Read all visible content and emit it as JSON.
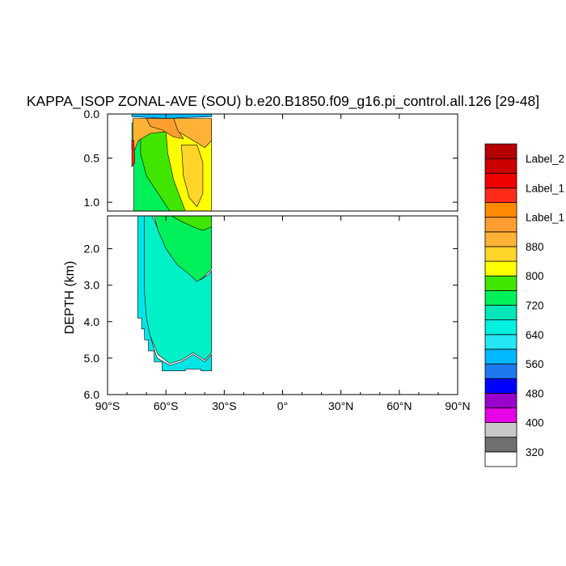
{
  "chart_data": {
    "type": "contour",
    "title": "KAPPA_ISOP ZONAL-AVE (SOU) b.e20.B1850.f09_g16.pi_control.all.126 [29-48]",
    "ylabel": "DEPTH (km)",
    "xlabel": "",
    "x_ticks": [
      "90°S",
      "60°S",
      "30°S",
      "0°",
      "30°N",
      "60°N",
      "90°N"
    ],
    "xlim": [
      -90,
      90
    ],
    "upper_panel": {
      "ylim": [
        0.0,
        1.1
      ],
      "y_ticks": [
        "0.0",
        "0.5",
        "1.0"
      ],
      "y_tick_values": [
        0.0,
        0.5,
        1.0
      ]
    },
    "lower_panel": {
      "ylim": [
        1.1,
        6.0
      ],
      "y_ticks": [
        "2.0",
        "3.0",
        "4.0",
        "5.0",
        "6.0"
      ],
      "y_tick_values": [
        2.0,
        3.0,
        4.0,
        5.0,
        6.0
      ]
    },
    "colorbar": {
      "labels": [
        "320",
        "400",
        "480",
        "560",
        "640",
        "720",
        "800",
        "880",
        "Label_1",
        "Label_1",
        "Label_2"
      ],
      "colors": [
        "#ffffff",
        "#707070",
        "#c8c8c8",
        "#e600e6",
        "#9a00cc",
        "#0000ff",
        "#1e78f0",
        "#00b8ff",
        "#25e6f5",
        "#00f0e0",
        "#00e6b8",
        "#00f05a",
        "#40e600",
        "#ffff00",
        "#ffd52a",
        "#ffb236",
        "#ff9e30",
        "#ff8a00",
        "#ff2a1a",
        "#f00000",
        "#cc0000",
        "#b40000"
      ]
    },
    "field_contours": [
      {
        "level": 660,
        "color": "#00e6e6",
        "points": [
          [
            -76.5,
            1.1
          ],
          [
            -70.5,
            1.1
          ],
          [
            -70.5,
            3.2
          ],
          [
            -69.5,
            4.0
          ],
          [
            -67.5,
            4.5
          ],
          [
            -64.5,
            5.0
          ],
          [
            -58.0,
            5.2
          ],
          [
            -52.0,
            5.1
          ],
          [
            -46.0,
            4.9
          ],
          [
            -40.0,
            5.1
          ],
          [
            -36.5,
            4.9
          ],
          [
            -36.5,
            5.35
          ],
          [
            -42.0,
            5.35
          ],
          [
            -42.0,
            5.3
          ],
          [
            -50.0,
            5.3
          ],
          [
            -50.0,
            5.35
          ],
          [
            -62.0,
            5.35
          ],
          [
            -62.0,
            5.1
          ],
          [
            -66.0,
            5.1
          ],
          [
            -66.0,
            4.8
          ],
          [
            -69.0,
            4.8
          ],
          [
            -69.0,
            4.5
          ],
          [
            -71.0,
            4.5
          ],
          [
            -71.0,
            4.2
          ],
          [
            -72.5,
            4.2
          ],
          [
            -72.5,
            3.9
          ],
          [
            -74.5,
            3.9
          ],
          [
            -74.5,
            1.1
          ]
        ]
      },
      {
        "level": 720,
        "color": "#00f0c8",
        "points": [
          [
            -75.5,
            1.1
          ],
          [
            -67.0,
            1.1
          ],
          [
            -63.0,
            1.6
          ],
          [
            -58.0,
            2.1
          ],
          [
            -52.0,
            2.5
          ],
          [
            -46.0,
            2.7
          ],
          [
            -42.0,
            2.85
          ],
          [
            -38.0,
            2.7
          ],
          [
            -36.5,
            2.6
          ],
          [
            -36.5,
            4.85
          ],
          [
            -40.0,
            5.05
          ],
          [
            -46.0,
            4.85
          ],
          [
            -52.0,
            5.05
          ],
          [
            -58.0,
            5.15
          ],
          [
            -64.0,
            4.9
          ],
          [
            -68.0,
            4.4
          ],
          [
            -70.0,
            3.9
          ],
          [
            -71.0,
            3.2
          ],
          [
            -71.0,
            1.1
          ]
        ]
      },
      {
        "level": 760,
        "color": "#00f05a",
        "points": [
          [
            -66.0,
            1.1
          ],
          [
            -36.5,
            1.1
          ],
          [
            -36.5,
            2.55
          ],
          [
            -40.0,
            2.75
          ],
          [
            -44.0,
            2.9
          ],
          [
            -48.0,
            2.7
          ],
          [
            -54.0,
            2.45
          ],
          [
            -60.0,
            2.0
          ],
          [
            -64.0,
            1.5
          ]
        ]
      },
      {
        "level": 800,
        "color": "#40e600",
        "points": [
          [
            -57.0,
            1.1
          ],
          [
            -36.5,
            1.1
          ],
          [
            -36.5,
            1.4
          ],
          [
            -41.0,
            1.5
          ],
          [
            -46.0,
            1.4
          ],
          [
            -52.0,
            1.25
          ]
        ]
      },
      {
        "level": 760,
        "color": "#00f05a",
        "points": [
          [
            -77.5,
            0.1
          ],
          [
            -36.5,
            0.1
          ],
          [
            -36.5,
            1.1
          ],
          [
            -76.5,
            1.1
          ],
          [
            -76.5,
            0.55
          ],
          [
            -77.5,
            0.4
          ]
        ]
      },
      {
        "level": 800,
        "color": "#40e600",
        "points": [
          [
            -73.0,
            0.2
          ],
          [
            -60.0,
            0.2
          ],
          [
            -57.0,
            0.5
          ],
          [
            -52.0,
            0.8
          ],
          [
            -46.0,
            1.05
          ],
          [
            -42.0,
            1.1
          ],
          [
            -58.0,
            1.1
          ],
          [
            -64.0,
            0.9
          ],
          [
            -70.0,
            0.7
          ],
          [
            -73.0,
            0.45
          ]
        ]
      },
      {
        "level": 840,
        "color": "#ffff00",
        "points": [
          [
            -60.0,
            0.2
          ],
          [
            -36.5,
            0.2
          ],
          [
            -36.5,
            1.1
          ],
          [
            -50.0,
            1.1
          ],
          [
            -56.0,
            0.75
          ],
          [
            -59.0,
            0.45
          ]
        ]
      },
      {
        "level": 880,
        "color": "#ffd52a",
        "points": [
          [
            -52.0,
            0.35
          ],
          [
            -44.0,
            0.35
          ],
          [
            -41.0,
            0.55
          ],
          [
            -41.0,
            0.9
          ],
          [
            -44.0,
            1.05
          ],
          [
            -48.0,
            0.95
          ],
          [
            -51.0,
            0.7
          ]
        ]
      },
      {
        "level": 920,
        "color": "#ffb236",
        "points": [
          [
            -77.0,
            0.05
          ],
          [
            -36.5,
            0.05
          ],
          [
            -36.5,
            0.3
          ],
          [
            -40.0,
            0.38
          ],
          [
            -46.0,
            0.3
          ],
          [
            -52.0,
            0.22
          ],
          [
            -60.0,
            0.2
          ],
          [
            -68.0,
            0.22
          ],
          [
            -74.0,
            0.3
          ],
          [
            -77.0,
            0.45
          ]
        ]
      },
      {
        "level": 960,
        "color": "#ff9e30",
        "points": [
          [
            -70.0,
            0.05
          ],
          [
            -56.0,
            0.05
          ],
          [
            -54.0,
            0.18
          ],
          [
            -51.0,
            0.28
          ],
          [
            -56.0,
            0.26
          ],
          [
            -62.0,
            0.18
          ],
          [
            -68.0,
            0.14
          ]
        ]
      },
      {
        "level": 1040,
        "color": "#ff2a1a",
        "points": [
          [
            -77.5,
            0.3
          ],
          [
            -76.5,
            0.3
          ],
          [
            -76.0,
            0.55
          ],
          [
            -77.5,
            0.6
          ]
        ]
      },
      {
        "level": 600,
        "color": "#00b8ff",
        "points": [
          [
            -77.5,
            0.0
          ],
          [
            -36.5,
            0.0
          ],
          [
            -36.5,
            0.03
          ],
          [
            -50.0,
            0.04
          ],
          [
            -60.0,
            0.05
          ],
          [
            -77.5,
            0.03
          ]
        ]
      }
    ]
  }
}
